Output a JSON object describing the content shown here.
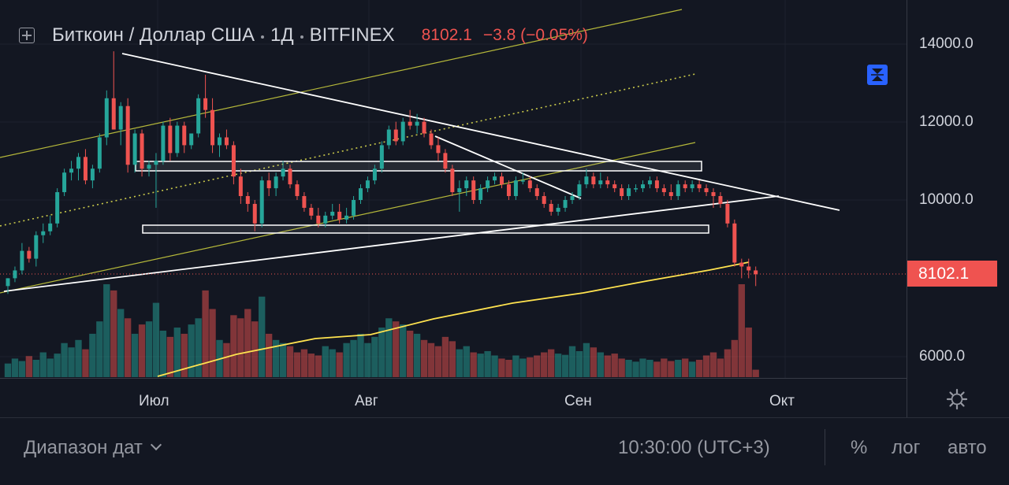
{
  "header": {
    "symbol": "Биткоин / Доллар США",
    "interval": "1Д",
    "exchange": "BITFINEX",
    "price": "8102.1",
    "change": "−3.8 (−0.05%)"
  },
  "price_axis": {
    "ticks": [
      "14000.0",
      "12000.0",
      "10000.0",
      "6000.0"
    ],
    "current_label": "8102.1"
  },
  "time_axis": {
    "ticks": [
      "Июл",
      "Авг",
      "Сен",
      "Окт"
    ]
  },
  "bottom_bar": {
    "date_range": "Диапазон дат",
    "time": "10:30:00 (UTC+3)",
    "percent": "%",
    "log": "лог",
    "auto": "авто"
  },
  "colors": {
    "up": "#26a69a",
    "down": "#ef5350",
    "background": "#131722",
    "trendline": "#ffffff",
    "channel": "#c9c94a",
    "ma": "#ffe34f"
  },
  "chart_data": {
    "type": "candlestick",
    "title": "Биткоин / Доллар США · 1Д · BITFINEX",
    "ylim": [
      5600,
      14900
    ],
    "x_ticks": [
      "Июл",
      "Авг",
      "Сен",
      "Окт"
    ],
    "y_ticks": [
      6000,
      10000,
      12000,
      14000
    ],
    "last_price": 8102.1,
    "open": [
      7800,
      8000,
      8200,
      8700,
      8500,
      9100,
      9200,
      9400,
      10200,
      10700,
      10800,
      11100,
      10500,
      10800,
      11600,
      12600,
      11800,
      12400,
      10900,
      11700,
      10800,
      10900,
      11000,
      11900,
      11200,
      11900,
      11400,
      11700,
      12600,
      12300,
      11400,
      11600,
      11400,
      10600,
      10100,
      9900,
      9400,
      10500,
      10300,
      10600,
      10800,
      10400,
      10100,
      9800,
      9600,
      9400,
      9600,
      9700,
      9500,
      9600,
      10000,
      10300,
      10500,
      10800,
      11400,
      11800,
      11500,
      12000,
      11900,
      12000,
      11700,
      11400,
      11200,
      10800,
      10200,
      10300,
      10500,
      10000,
      10300,
      10500,
      10600,
      10400,
      10100,
      10500,
      10500,
      10300,
      10100,
      9900,
      9700,
      9800,
      10000,
      10100,
      10400,
      10600,
      10400,
      10500,
      10400,
      10300,
      10100,
      10300,
      10300,
      10400,
      10500,
      10300,
      10200,
      10100,
      10400,
      10300,
      10400,
      10300,
      10200,
      10100,
      9900,
      9400,
      8400,
      8300,
      8200
    ],
    "high": [
      8000,
      8300,
      8900,
      8800,
      9200,
      9400,
      9600,
      10300,
      10800,
      11000,
      11200,
      11300,
      10900,
      11700,
      12800,
      13800,
      12500,
      12600,
      11800,
      11800,
      11000,
      11200,
      12000,
      12100,
      12000,
      12000,
      11700,
      12700,
      13200,
      12600,
      11700,
      11800,
      11500,
      10800,
      10200,
      10000,
      10600,
      10700,
      10700,
      11000,
      10900,
      10500,
      10200,
      9900,
      9800,
      9700,
      9900,
      9900,
      9800,
      10100,
      10400,
      10600,
      10900,
      11500,
      11900,
      12000,
      12100,
      12300,
      12200,
      12100,
      11800,
      11600,
      11300,
      10900,
      10500,
      10600,
      10600,
      10400,
      10600,
      10700,
      10700,
      10500,
      10600,
      10700,
      10600,
      10400,
      10200,
      10000,
      9900,
      10100,
      10200,
      10500,
      10800,
      10700,
      10700,
      10600,
      10500,
      10400,
      10400,
      10400,
      10500,
      10600,
      10600,
      10400,
      10400,
      10500,
      10500,
      10500,
      10500,
      10400,
      10300,
      10200,
      10000,
      9500,
      8500,
      8500,
      8300
    ],
    "low": [
      7600,
      7900,
      8100,
      8400,
      8300,
      8900,
      9100,
      9300,
      10100,
      10500,
      10500,
      10400,
      10300,
      10700,
      11400,
      11800,
      11400,
      10700,
      10700,
      10600,
      10600,
      9800,
      10900,
      11000,
      11100,
      11200,
      11300,
      11600,
      12100,
      11200,
      11100,
      11300,
      10400,
      9900,
      9700,
      9200,
      9300,
      10100,
      10100,
      10500,
      10300,
      10000,
      9700,
      9500,
      9300,
      9300,
      9500,
      9400,
      9400,
      9500,
      9900,
      10200,
      10400,
      10700,
      11300,
      11400,
      11400,
      11800,
      11700,
      11600,
      11300,
      11000,
      10700,
      10100,
      9700,
      10100,
      9900,
      9900,
      10200,
      10400,
      10300,
      10000,
      10000,
      10400,
      10200,
      10000,
      9800,
      9600,
      9600,
      9700,
      9900,
      10000,
      10300,
      10300,
      10300,
      10300,
      10200,
      10000,
      10000,
      10200,
      10200,
      10300,
      10200,
      10100,
      10000,
      10000,
      10200,
      10200,
      10200,
      10100,
      9800,
      9800,
      9300,
      8300,
      8000,
      8000,
      7800
    ],
    "close": [
      8000,
      8200,
      8700,
      8500,
      9100,
      9200,
      9400,
      10200,
      10700,
      10800,
      11100,
      10500,
      10800,
      11600,
      12600,
      11800,
      12400,
      10900,
      11700,
      10800,
      10900,
      11000,
      11900,
      11200,
      11900,
      11400,
      11700,
      12600,
      12300,
      11400,
      11600,
      11400,
      10600,
      10100,
      9900,
      9400,
      10500,
      10300,
      10600,
      10800,
      10400,
      10100,
      9800,
      9600,
      9400,
      9600,
      9700,
      9500,
      9600,
      10000,
      10300,
      10500,
      10800,
      11400,
      11800,
      11500,
      12000,
      11900,
      12000,
      11700,
      11400,
      11200,
      10800,
      10200,
      10300,
      10500,
      10000,
      10300,
      10500,
      10600,
      10400,
      10100,
      10500,
      10500,
      10300,
      10100,
      9900,
      9700,
      9800,
      10000,
      10100,
      10400,
      10600,
      10400,
      10500,
      10400,
      10300,
      10100,
      10300,
      10300,
      10400,
      10500,
      10300,
      10200,
      10100,
      10400,
      10300,
      10400,
      10300,
      10200,
      10100,
      9900,
      9400,
      8400,
      8300,
      8200,
      8102
    ],
    "volume": [
      22,
      30,
      26,
      34,
      28,
      40,
      30,
      38,
      55,
      48,
      60,
      45,
      70,
      90,
      150,
      140,
      110,
      95,
      70,
      85,
      90,
      120,
      75,
      65,
      80,
      70,
      85,
      95,
      140,
      110,
      60,
      55,
      100,
      95,
      110,
      90,
      130,
      70,
      60,
      55,
      50,
      40,
      45,
      38,
      35,
      50,
      45,
      40,
      55,
      60,
      70,
      55,
      65,
      80,
      95,
      90,
      85,
      75,
      70,
      60,
      55,
      50,
      65,
      58,
      45,
      50,
      40,
      38,
      42,
      35,
      30,
      28,
      35,
      30,
      32,
      35,
      40,
      45,
      38,
      36,
      50,
      42,
      55,
      48,
      40,
      35,
      38,
      30,
      28,
      25,
      30,
      28,
      25,
      30,
      26,
      28,
      30,
      25,
      28,
      35,
      40,
      30,
      45,
      60,
      150,
      80,
      12
    ]
  }
}
